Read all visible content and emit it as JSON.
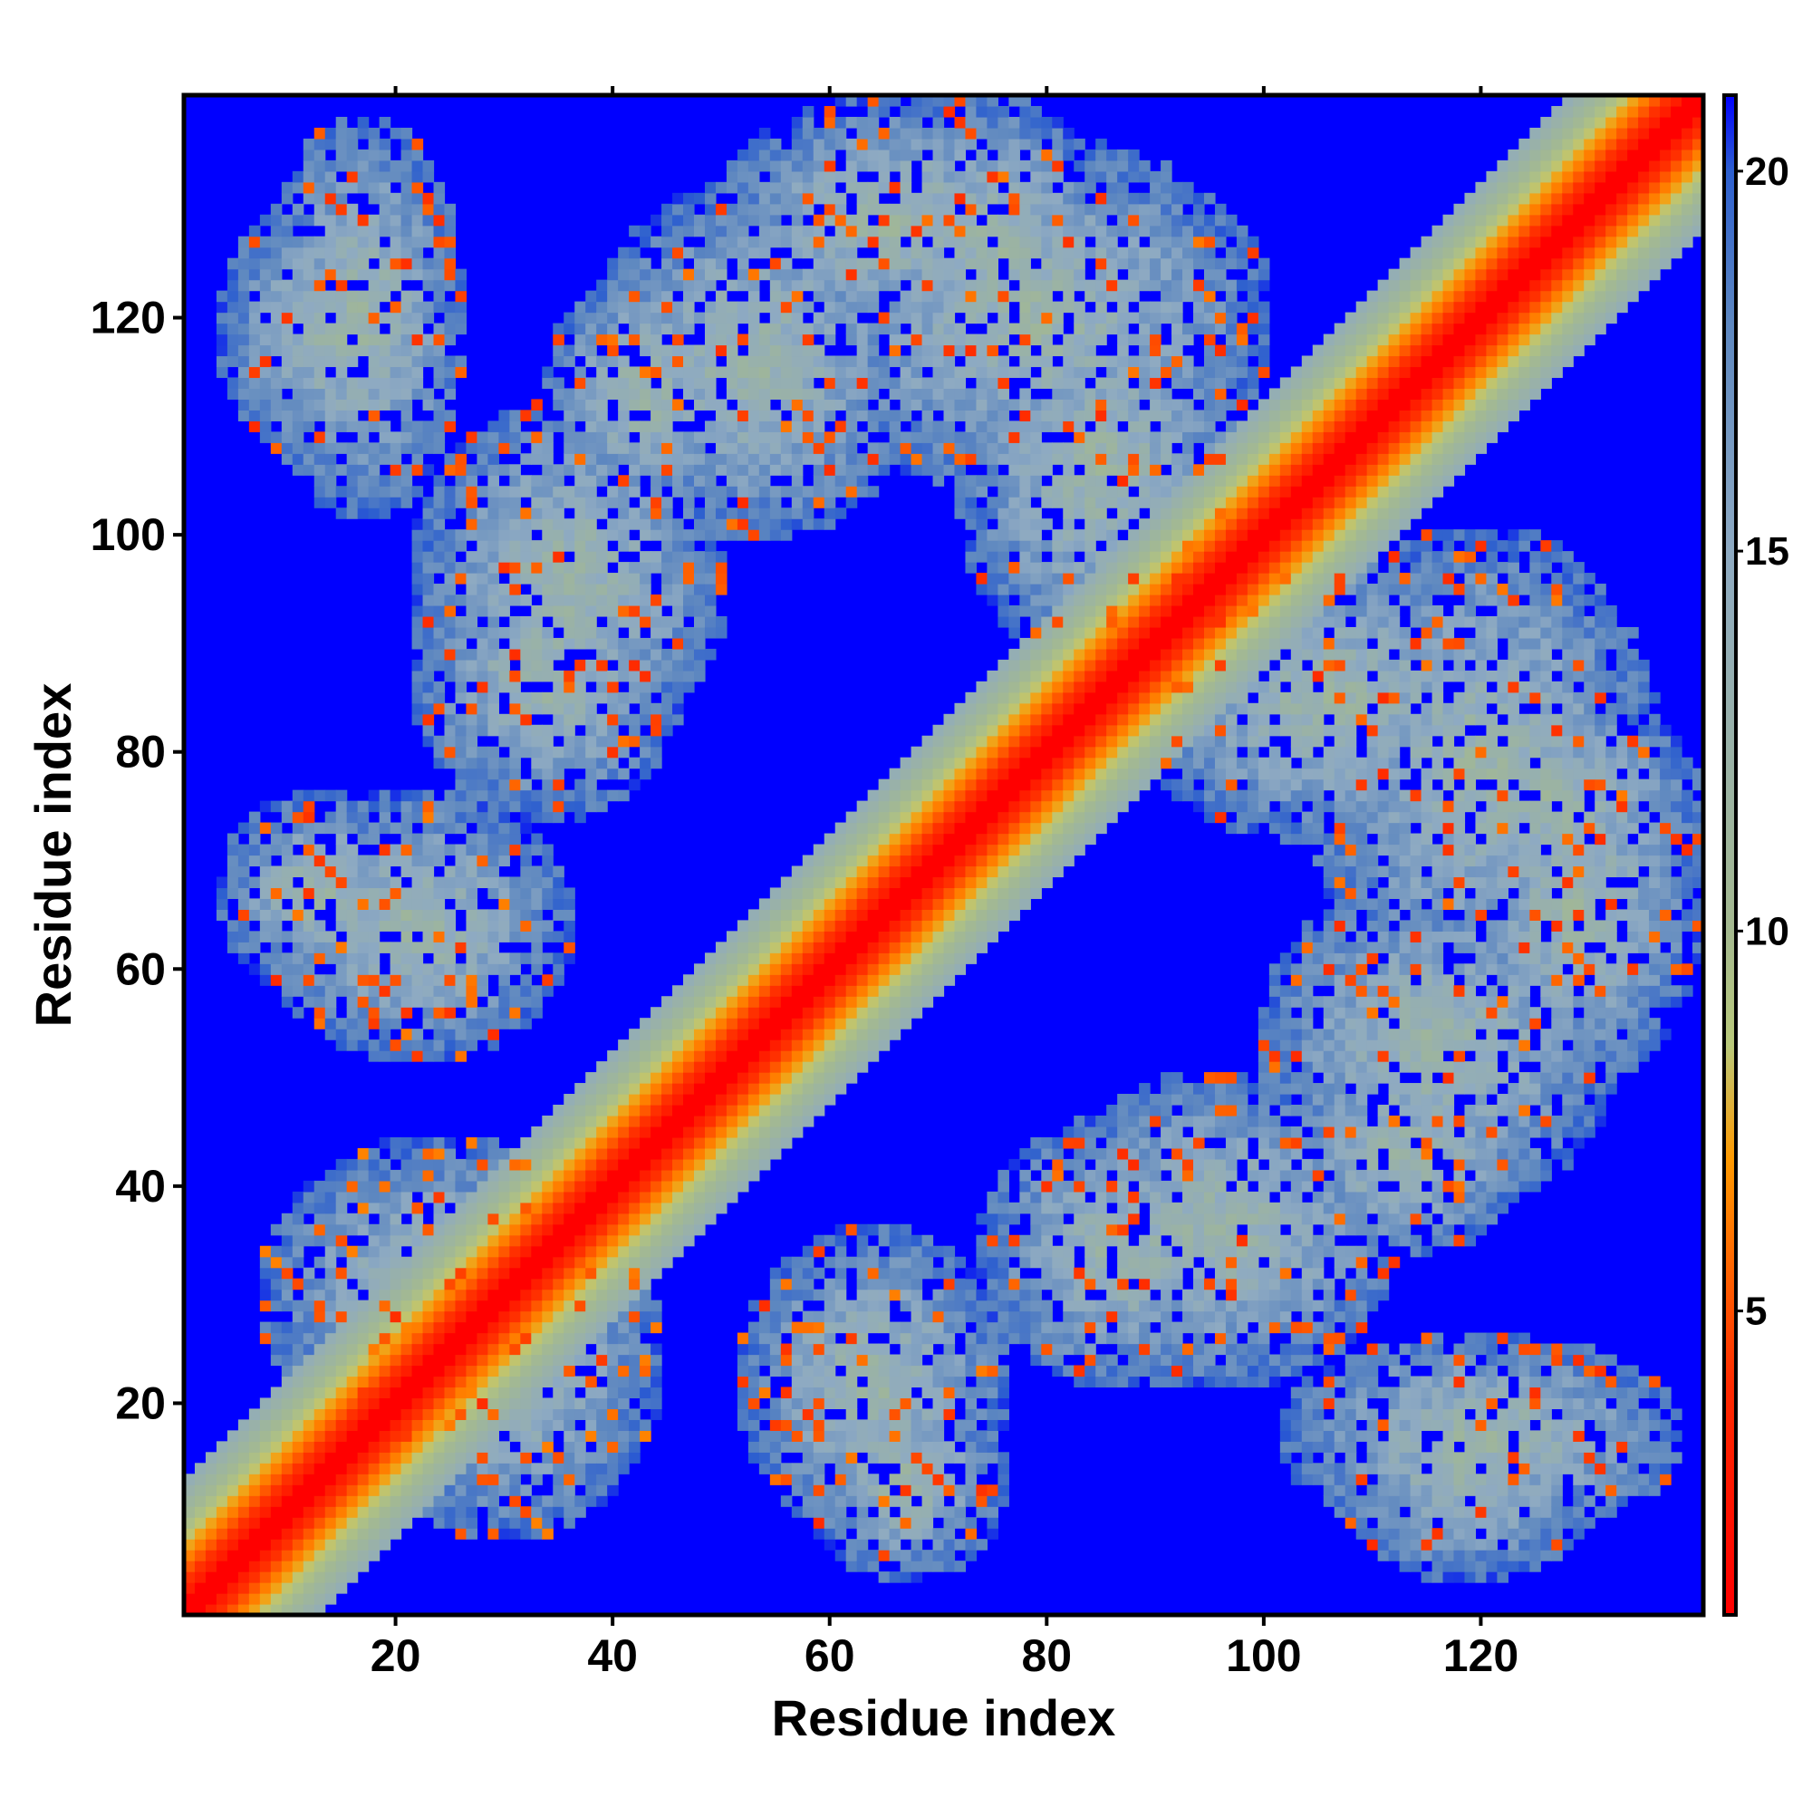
{
  "chart_data": {
    "type": "heatmap",
    "title": "",
    "xlabel": "Residue index",
    "ylabel": "Residue index",
    "xlim": [
      1,
      140
    ],
    "ylim": [
      1,
      140
    ],
    "x_ticks": [
      20,
      40,
      60,
      80,
      100,
      120
    ],
    "y_ticks": [
      20,
      40,
      60,
      80,
      100,
      120
    ],
    "colorbar": {
      "range": [
        1,
        21
      ],
      "ticks": [
        5,
        10,
        15,
        20
      ],
      "stops": [
        {
          "value": 1,
          "color": "#ff0000"
        },
        {
          "value": 4,
          "color": "#ff2a00"
        },
        {
          "value": 7,
          "color": "#ff9a00"
        },
        {
          "value": 8.5,
          "color": "#b9c97a"
        },
        {
          "value": 10,
          "color": "#a4b98f"
        },
        {
          "value": 15,
          "color": "#8eaac2"
        },
        {
          "value": 18,
          "color": "#5d87c0"
        },
        {
          "value": 20,
          "color": "#2d5fcf"
        },
        {
          "value": 21,
          "color": "#0000ff"
        }
      ]
    },
    "diagonal_value": 1,
    "max_value": 21,
    "note_cells": "Symmetric residue-residue distance map: a red main diagonal with strong off-diagonal contact bands near (10-35, 55-75), (20-45, 10-40), (60-75, 5-20), (75-95, 90-125), (105-135, 60-100) and (125-140, 55-80)."
  }
}
